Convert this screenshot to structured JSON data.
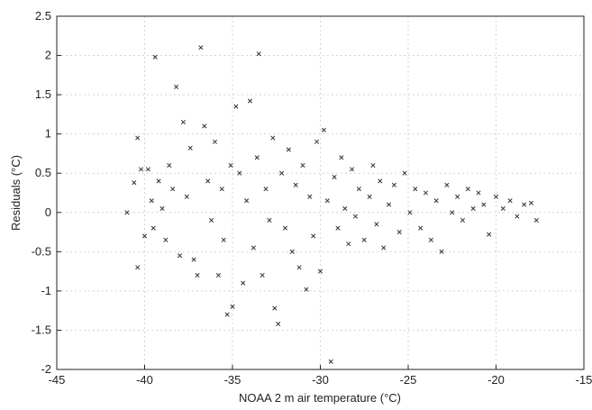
{
  "chart_data": {
    "type": "scatter",
    "marker": "x",
    "marker_color": "#333333",
    "xlabel": "NOAA 2 m air temperature (°C)",
    "ylabel": "Residuals (°C)",
    "xlim": [
      -45,
      -15
    ],
    "ylim": [
      -2,
      2.5
    ],
    "xticks": [
      -45,
      -40,
      -35,
      -30,
      -25,
      -20,
      -15
    ],
    "yticks": [
      -2,
      -1.5,
      -1,
      -0.5,
      0,
      0.5,
      1,
      1.5,
      2,
      2.5
    ],
    "grid": true,
    "series": [
      {
        "points": [
          [
            -41.0,
            0.0
          ],
          [
            -40.6,
            0.38
          ],
          [
            -40.4,
            0.95
          ],
          [
            -40.4,
            -0.7
          ],
          [
            -40.2,
            0.55
          ],
          [
            -40.0,
            -0.3
          ],
          [
            -39.8,
            0.55
          ],
          [
            -39.6,
            0.15
          ],
          [
            -39.5,
            -0.2
          ],
          [
            -39.4,
            1.98
          ],
          [
            -39.2,
            0.4
          ],
          [
            -39.0,
            0.05
          ],
          [
            -38.8,
            -0.35
          ],
          [
            -38.6,
            0.6
          ],
          [
            -38.4,
            0.3
          ],
          [
            -38.2,
            1.6
          ],
          [
            -38.0,
            -0.55
          ],
          [
            -37.8,
            1.15
          ],
          [
            -37.6,
            0.2
          ],
          [
            -37.4,
            0.82
          ],
          [
            -37.2,
            -0.6
          ],
          [
            -37.0,
            -0.8
          ],
          [
            -36.8,
            2.1
          ],
          [
            -36.6,
            1.1
          ],
          [
            -36.4,
            0.4
          ],
          [
            -36.2,
            -0.1
          ],
          [
            -36.0,
            0.9
          ],
          [
            -35.8,
            -0.8
          ],
          [
            -35.6,
            0.3
          ],
          [
            -35.5,
            -0.35
          ],
          [
            -35.3,
            -1.3
          ],
          [
            -35.1,
            0.6
          ],
          [
            -35.0,
            -1.2
          ],
          [
            -34.8,
            1.35
          ],
          [
            -34.6,
            0.5
          ],
          [
            -34.4,
            -0.9
          ],
          [
            -34.2,
            0.15
          ],
          [
            -34.0,
            1.42
          ],
          [
            -33.8,
            -0.45
          ],
          [
            -33.6,
            0.7
          ],
          [
            -33.5,
            2.02
          ],
          [
            -33.3,
            -0.8
          ],
          [
            -33.1,
            0.3
          ],
          [
            -32.9,
            -0.1
          ],
          [
            -32.7,
            0.95
          ],
          [
            -32.6,
            -1.22
          ],
          [
            -32.4,
            -1.42
          ],
          [
            -32.2,
            0.5
          ],
          [
            -32.0,
            -0.2
          ],
          [
            -31.8,
            0.8
          ],
          [
            -31.6,
            -0.5
          ],
          [
            -31.4,
            0.35
          ],
          [
            -31.2,
            -0.7
          ],
          [
            -31.0,
            0.6
          ],
          [
            -30.8,
            -0.98
          ],
          [
            -30.6,
            0.2
          ],
          [
            -30.4,
            -0.3
          ],
          [
            -30.2,
            0.9
          ],
          [
            -30.0,
            -0.75
          ],
          [
            -29.8,
            1.05
          ],
          [
            -29.6,
            0.15
          ],
          [
            -29.4,
            -1.9
          ],
          [
            -29.2,
            0.45
          ],
          [
            -29.0,
            -0.2
          ],
          [
            -28.8,
            0.7
          ],
          [
            -28.6,
            0.05
          ],
          [
            -28.4,
            -0.4
          ],
          [
            -28.2,
            0.55
          ],
          [
            -28.0,
            -0.05
          ],
          [
            -27.8,
            0.3
          ],
          [
            -27.5,
            -0.35
          ],
          [
            -27.2,
            0.2
          ],
          [
            -27.0,
            0.6
          ],
          [
            -26.8,
            -0.15
          ],
          [
            -26.6,
            0.4
          ],
          [
            -26.4,
            -0.45
          ],
          [
            -26.1,
            0.1
          ],
          [
            -25.8,
            0.35
          ],
          [
            -25.5,
            -0.25
          ],
          [
            -25.2,
            0.5
          ],
          [
            -24.9,
            0.0
          ],
          [
            -24.6,
            0.3
          ],
          [
            -24.3,
            -0.2
          ],
          [
            -24.0,
            0.25
          ],
          [
            -23.7,
            -0.35
          ],
          [
            -23.4,
            0.15
          ],
          [
            -23.1,
            -0.5
          ],
          [
            -22.8,
            0.35
          ],
          [
            -22.5,
            0.0
          ],
          [
            -22.2,
            0.2
          ],
          [
            -21.9,
            -0.1
          ],
          [
            -21.6,
            0.3
          ],
          [
            -21.3,
            0.05
          ],
          [
            -21.0,
            0.25
          ],
          [
            -20.7,
            0.1
          ],
          [
            -20.4,
            -0.28
          ],
          [
            -20.0,
            0.2
          ],
          [
            -19.6,
            0.05
          ],
          [
            -19.2,
            0.15
          ],
          [
            -18.8,
            -0.05
          ],
          [
            -18.4,
            0.1
          ],
          [
            -18.0,
            0.12
          ],
          [
            -17.7,
            -0.1
          ]
        ]
      }
    ]
  }
}
